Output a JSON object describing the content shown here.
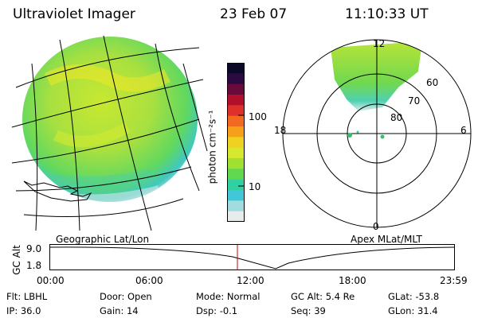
{
  "header": {
    "title": "Ultraviolet Imager",
    "date": "23 Feb 07",
    "time": "11:10:33 UT"
  },
  "colorbar": {
    "label": "photon cm⁻²s⁻¹",
    "ticks": [
      "100",
      "10"
    ],
    "colors": [
      "#0a0a28",
      "#2a0a40",
      "#6a0a3a",
      "#b0102a",
      "#e0302a",
      "#f06a20",
      "#f5a018",
      "#f0d020",
      "#d8e830",
      "#a0e030",
      "#60d850",
      "#30d0a0",
      "#40c8d8",
      "#a0dce0",
      "#e8ecec"
    ]
  },
  "polar": {
    "hour_labels": [
      "12",
      "18",
      "6",
      "0"
    ],
    "lat_labels": [
      "60",
      "70",
      "80"
    ]
  },
  "timeline": {
    "left_label": "Geographic Lat/Lon",
    "right_label": "Apex MLat/MLT",
    "axis_name": "GC Alt",
    "y_ticks": [
      "9.0",
      "1.8"
    ],
    "x_ticks": [
      "00:00",
      "06:00",
      "12:00",
      "18:00",
      "23:59"
    ],
    "current_time_marker": "11:10",
    "marker_color": "#c00000"
  },
  "info": {
    "row1": [
      {
        "label": "Flt:",
        "value": "LBHL"
      },
      {
        "label": "Door:",
        "value": "Open"
      },
      {
        "label": "Mode:",
        "value": "Normal"
      },
      {
        "label": "GC Alt:",
        "value": "5.4 Re"
      },
      {
        "label": "GLat:",
        "value": "-53.8"
      }
    ],
    "row2": [
      {
        "label": "IP:",
        "value": "36.0"
      },
      {
        "label": "Gain:",
        "value": "14"
      },
      {
        "label": "Dsp:",
        "value": "-0.1"
      },
      {
        "label": "Seq:",
        "value": "39"
      },
      {
        "label": "GLon:",
        "value": "31.4"
      }
    ]
  }
}
